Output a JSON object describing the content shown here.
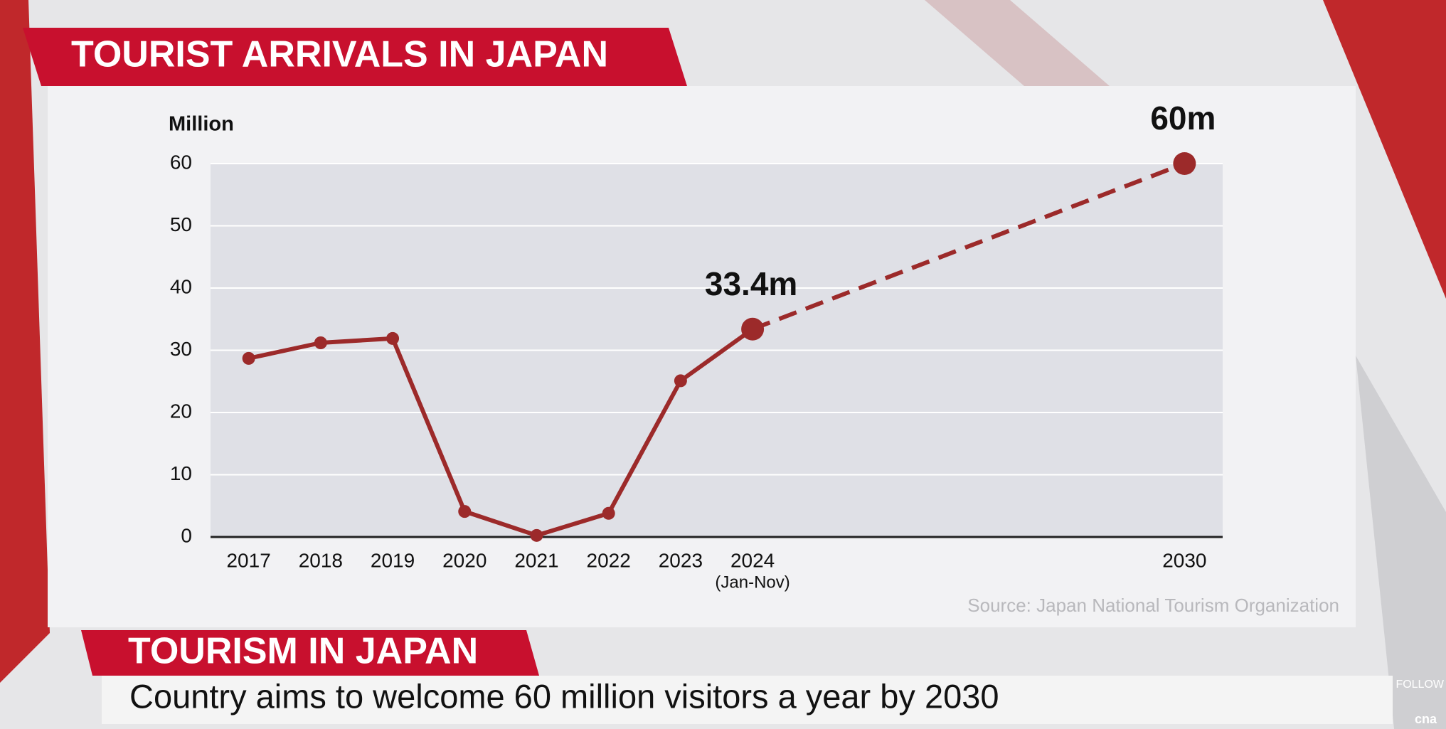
{
  "header": {
    "title": "TOURIST ARRIVALS IN JAPAN"
  },
  "chart_data": {
    "type": "line",
    "y_label": "Million",
    "x": [
      2017,
      2018,
      2019,
      2020,
      2021,
      2022,
      2023,
      2024,
      2030
    ],
    "series": [
      {
        "name": "Tourist arrivals",
        "color": "#9c2a2a",
        "values": [
          28.7,
          31.2,
          31.9,
          4.1,
          0.25,
          3.8,
          25.1,
          33.4,
          60
        ],
        "value_labels": [
          null,
          null,
          null,
          null,
          null,
          null,
          null,
          "33.4m",
          "60m"
        ],
        "dashed_from_x": 2024
      }
    ],
    "xlim": [
      2016.47,
      2030.53
    ],
    "xticks": [
      2017,
      2018,
      2019,
      2020,
      2021,
      2022,
      2023,
      {
        "value": 2024,
        "label": "2024",
        "note": "(Jan-Nov)"
      },
      2030
    ],
    "ylim": [
      0,
      60
    ],
    "yticks": [
      0,
      10,
      20,
      30,
      40,
      50,
      60
    ],
    "grid": true,
    "source": "Source: Japan National Tourism Organization"
  },
  "lower_third": {
    "headline": "TOURISM IN JAPAN",
    "caption": "Country aims to welcome 60 million visitors a year by 2030"
  },
  "logo": {
    "follow": "FOLLOW",
    "brand": "cna"
  }
}
